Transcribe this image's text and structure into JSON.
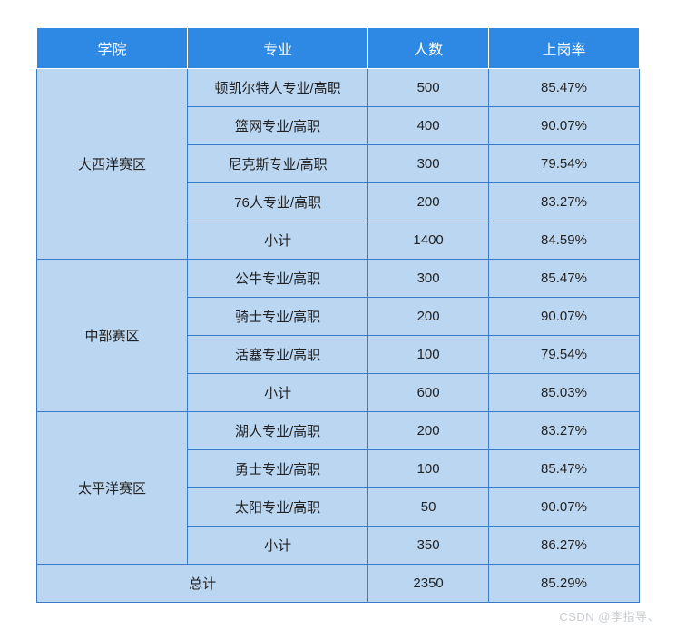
{
  "colors": {
    "header_bg": "#2e89e5",
    "header_text": "#ffffff",
    "cell_bg": "#bbd6f1",
    "cell_border": "#3b7bc2",
    "cell_text": "#222222",
    "watermark": "#c9cdd2"
  },
  "columns": [
    {
      "label": "学院",
      "width_pct": 25
    },
    {
      "label": "专业",
      "width_pct": 30
    },
    {
      "label": "人数",
      "width_pct": 20
    },
    {
      "label": "上岗率",
      "width_pct": 25
    }
  ],
  "groups": [
    {
      "name": "大西洋赛区",
      "rows": [
        {
          "major": "顿凯尔特人专业/高职",
          "count": "500",
          "rate": "85.47%"
        },
        {
          "major": "篮网专业/高职",
          "count": "400",
          "rate": "90.07%"
        },
        {
          "major": "尼克斯专业/高职",
          "count": "300",
          "rate": "79.54%"
        },
        {
          "major": "76人专业/高职",
          "count": "200",
          "rate": "83.27%"
        }
      ],
      "subtotal": {
        "label": "小计",
        "count": "1400",
        "rate": "84.59%"
      }
    },
    {
      "name": "中部赛区",
      "rows": [
        {
          "major": "公牛专业/高职",
          "count": "300",
          "rate": "85.47%"
        },
        {
          "major": "骑士专业/高职",
          "count": "200",
          "rate": "90.07%"
        },
        {
          "major": "活塞专业/高职",
          "count": "100",
          "rate": "79.54%"
        }
      ],
      "subtotal": {
        "label": "小计",
        "count": "600",
        "rate": "85.03%"
      }
    },
    {
      "name": "太平洋赛区",
      "rows": [
        {
          "major": "湖人专业/高职",
          "count": "200",
          "rate": "83.27%"
        },
        {
          "major": "勇士专业/高职",
          "count": "100",
          "rate": "85.47%"
        },
        {
          "major": "太阳专业/高职",
          "count": "50",
          "rate": "90.07%"
        }
      ],
      "subtotal": {
        "label": "小计",
        "count": "350",
        "rate": "86.27%"
      }
    }
  ],
  "total": {
    "label": "总计",
    "count": "2350",
    "rate": "85.29%"
  },
  "watermark": "CSDN @李指导、"
}
